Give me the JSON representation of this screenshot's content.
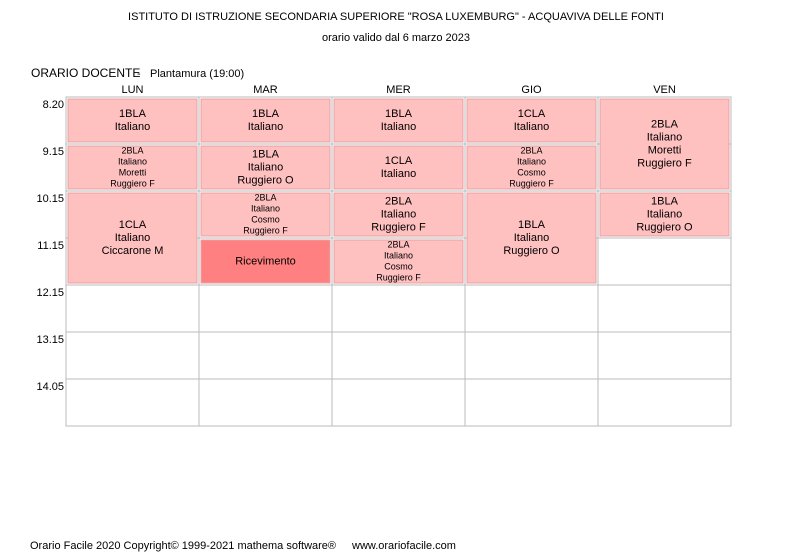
{
  "header": {
    "title": "ISTITUTO DI ISTRUZIONE SECONDARIA SUPERIORE \"ROSA LUXEMBURG\" - ACQUAVIVA DELLE FONTI",
    "subtitle": "orario valido dal 6 marzo 2023"
  },
  "schedule": {
    "label": "ORARIO DOCENTE",
    "teacher": "Plantamura  (19:00)",
    "times": [
      "8.20",
      "9.15",
      "10.15",
      "11.15",
      "12.15",
      "13.15",
      "14.05"
    ],
    "columns": [
      {
        "day": "LUN",
        "cells": [
          {
            "periods": 1,
            "color": "#ffc0c0",
            "lines": [
              "1BLA",
              "Italiano"
            ]
          },
          {
            "periods": 1,
            "color": "#ffc0c0",
            "lines": [
              "2BLA",
              "Italiano",
              "Moretti",
              "Ruggiero F"
            ]
          },
          {
            "periods": 2,
            "color": "#ffc0c0",
            "lines": [
              "1CLA",
              "Italiano",
              "Ciccarone M"
            ]
          }
        ]
      },
      {
        "day": "MAR",
        "cells": [
          {
            "periods": 1,
            "color": "#ffc0c0",
            "lines": [
              "1BLA",
              "Italiano"
            ]
          },
          {
            "periods": 1,
            "color": "#ffc0c0",
            "lines": [
              "1BLA",
              "Italiano",
              "Ruggiero O"
            ]
          },
          {
            "periods": 1,
            "color": "#ffc0c0",
            "lines": [
              "2BLA",
              "Italiano",
              "Cosmo",
              "Ruggiero F"
            ]
          },
          {
            "periods": 1,
            "color": "#ff8080",
            "lines": [
              "Ricevimento"
            ]
          }
        ]
      },
      {
        "day": "MER",
        "cells": [
          {
            "periods": 1,
            "color": "#ffc0c0",
            "lines": [
              "1BLA",
              "Italiano"
            ]
          },
          {
            "periods": 1,
            "color": "#ffc0c0",
            "lines": [
              "1CLA",
              "Italiano"
            ]
          },
          {
            "periods": 1,
            "color": "#ffc0c0",
            "lines": [
              "2BLA",
              "Italiano",
              "Ruggiero F"
            ]
          },
          {
            "periods": 1,
            "color": "#ffc0c0",
            "lines": [
              "2BLA",
              "Italiano",
              "Cosmo",
              "Ruggiero F"
            ]
          }
        ]
      },
      {
        "day": "GIO",
        "cells": [
          {
            "periods": 1,
            "color": "#ffc0c0",
            "lines": [
              "1CLA",
              "Italiano"
            ]
          },
          {
            "periods": 1,
            "color": "#ffc0c0",
            "lines": [
              "2BLA",
              "Italiano",
              "Cosmo",
              "Ruggiero F"
            ]
          },
          {
            "periods": 2,
            "color": "#ffc0c0",
            "lines": [
              "1BLA",
              "Italiano",
              "Ruggiero O"
            ]
          }
        ]
      },
      {
        "day": "VEN",
        "cells": [
          {
            "periods": 2,
            "color": "#ffc0c0",
            "lines": [
              "2BLA",
              "Italiano",
              "Moretti",
              "Ruggiero F"
            ]
          },
          {
            "periods": 1,
            "color": "#ffc0c0",
            "lines": [
              "1BLA",
              "Italiano",
              "Ruggiero O"
            ]
          }
        ]
      }
    ]
  },
  "footer": {
    "credits": "Orario Facile 2020  Copyright© 1999-2021 mathema software®",
    "website": "www.orariofacile.com"
  }
}
